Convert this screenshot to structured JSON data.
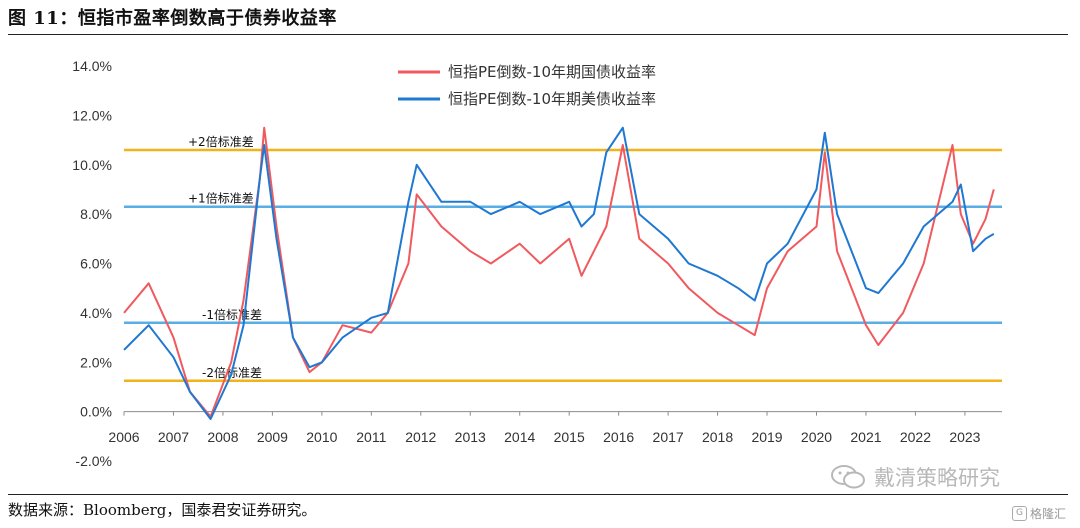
{
  "figure": {
    "title": "图 11：恒指市盈率倒数高于债券收益率",
    "source": "数据来源：Bloomberg，国泰君安证券研究。",
    "watermark": "戴清策略研究",
    "badge": "格隆汇"
  },
  "chart_data": {
    "type": "line",
    "x": [
      "2006-01",
      "2006-07",
      "2007-01",
      "2007-05",
      "2007-10",
      "2008-03",
      "2008-06",
      "2008-10",
      "2008-11",
      "2009-02",
      "2009-06",
      "2009-10",
      "2010-01",
      "2010-06",
      "2011-01",
      "2011-05",
      "2011-10",
      "2011-12",
      "2012-06",
      "2013-01",
      "2013-06",
      "2014-01",
      "2014-06",
      "2015-01",
      "2015-04",
      "2015-07",
      "2015-10",
      "2016-02",
      "2016-06",
      "2017-01",
      "2017-06",
      "2018-01",
      "2018-06",
      "2018-10",
      "2019-01",
      "2019-06",
      "2020-01",
      "2020-03",
      "2020-06",
      "2021-01",
      "2021-04",
      "2021-10",
      "2022-03",
      "2022-10",
      "2022-12",
      "2023-03",
      "2023-06",
      "2023-08"
    ],
    "series": [
      {
        "name": "恒指PE倒数-10年期国债收益率",
        "color": "#f05a5f",
        "values": [
          4.0,
          5.2,
          3.0,
          0.8,
          -0.2,
          2.0,
          4.5,
          9.5,
          11.5,
          7.5,
          3.0,
          1.6,
          2.0,
          3.5,
          3.2,
          4.0,
          6.0,
          8.8,
          7.5,
          6.5,
          6.0,
          6.8,
          6.0,
          7.0,
          5.5,
          6.5,
          7.5,
          10.8,
          7.0,
          6.0,
          5.0,
          4.0,
          3.5,
          3.1,
          5.0,
          6.5,
          7.5,
          10.5,
          6.5,
          3.5,
          2.7,
          4.0,
          6.0,
          10.8,
          8.0,
          6.8,
          7.8,
          9.0
        ]
      },
      {
        "name": "恒指PE倒数-10年期美债收益率",
        "color": "#1f78d1",
        "values": [
          2.5,
          3.5,
          2.2,
          0.8,
          -0.3,
          1.5,
          3.5,
          9.5,
          10.8,
          7.0,
          3.0,
          1.8,
          2.0,
          3.0,
          3.8,
          4.0,
          8.5,
          10.0,
          8.5,
          8.5,
          8.0,
          8.5,
          8.0,
          8.5,
          7.5,
          8.0,
          10.5,
          11.5,
          8.0,
          7.0,
          6.0,
          5.5,
          5.0,
          4.5,
          6.0,
          6.8,
          9.0,
          11.3,
          8.0,
          5.0,
          4.8,
          6.0,
          7.5,
          8.5,
          9.2,
          6.5,
          7.0,
          7.2
        ]
      }
    ],
    "bands": [
      {
        "label": "+2倍标准差",
        "value": 10.6,
        "color": "#f2b21a"
      },
      {
        "label": "+1倍标准差",
        "value": 8.3,
        "color": "#5aaee6"
      },
      {
        "label": "-1倍标准差",
        "value": 3.6,
        "color": "#5aaee6"
      },
      {
        "label": "-2倍标准差",
        "value": 1.25,
        "color": "#f2b21a"
      }
    ],
    "x_ticks": [
      "2006",
      "2007",
      "2008",
      "2009",
      "2010",
      "2011",
      "2012",
      "2013",
      "2014",
      "2015",
      "2016",
      "2017",
      "2018",
      "2019",
      "2020",
      "2021",
      "2022",
      "2023"
    ],
    "y_ticks": [
      "14.0%",
      "12.0%",
      "10.0%",
      "8.0%",
      "6.0%",
      "4.0%",
      "2.0%",
      "0.0%",
      "-2.0%"
    ],
    "ylim": [
      -2,
      14
    ],
    "legend_position": "top-center",
    "grid": false
  }
}
